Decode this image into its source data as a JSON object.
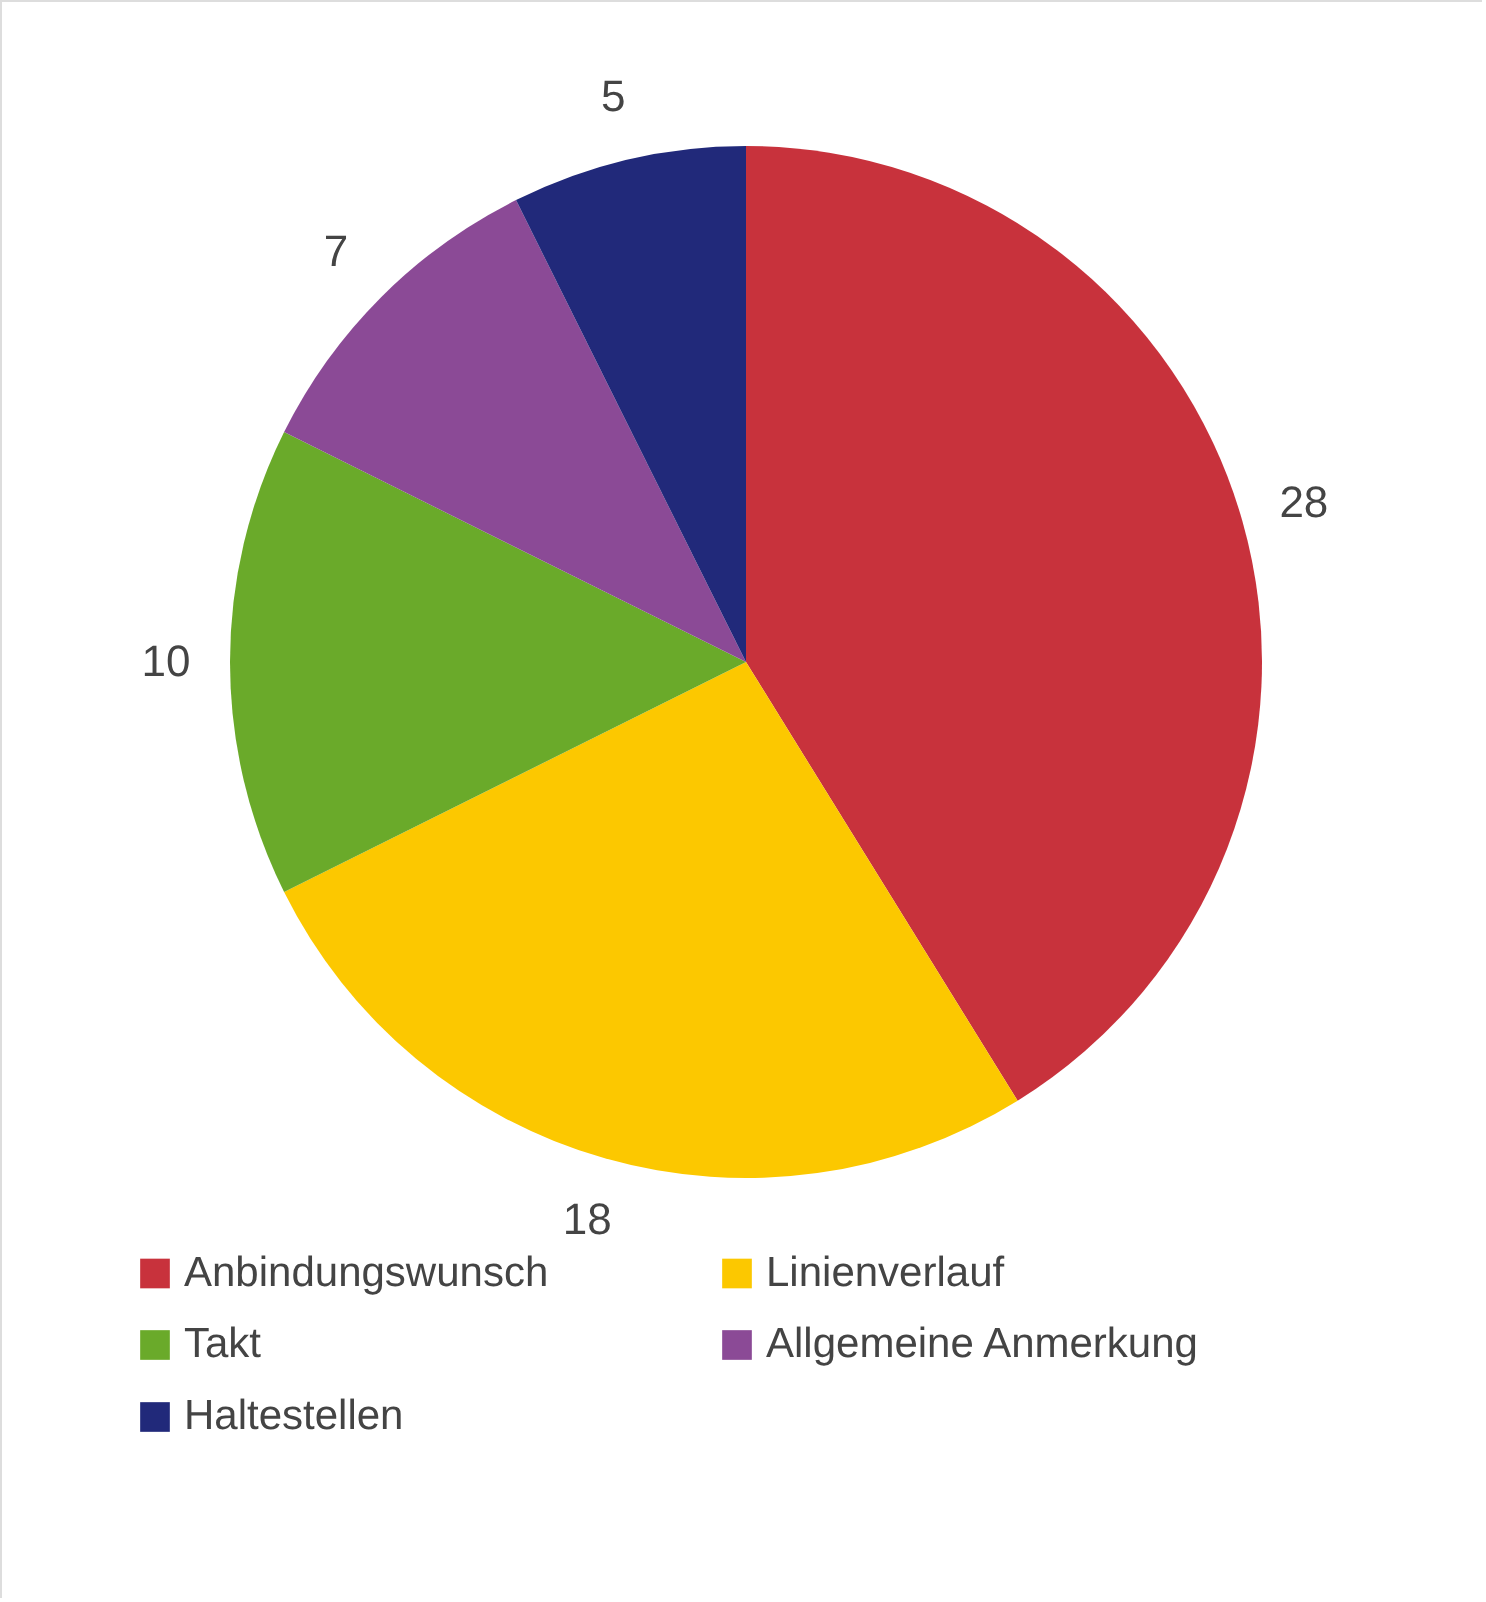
{
  "chart_data": {
    "type": "pie",
    "categories": [
      "Anbindungswunsch",
      "Linienverlauf",
      "Takt",
      "Allgemeine Anmerkung",
      "Haltestellen"
    ],
    "values": [
      28,
      18,
      10,
      7,
      5
    ],
    "colors": [
      "#c8323c",
      "#fcc800",
      "#6aaa2a",
      "#8b4a96",
      "#21297a"
    ],
    "data_labels": true,
    "legend": "bottom"
  }
}
